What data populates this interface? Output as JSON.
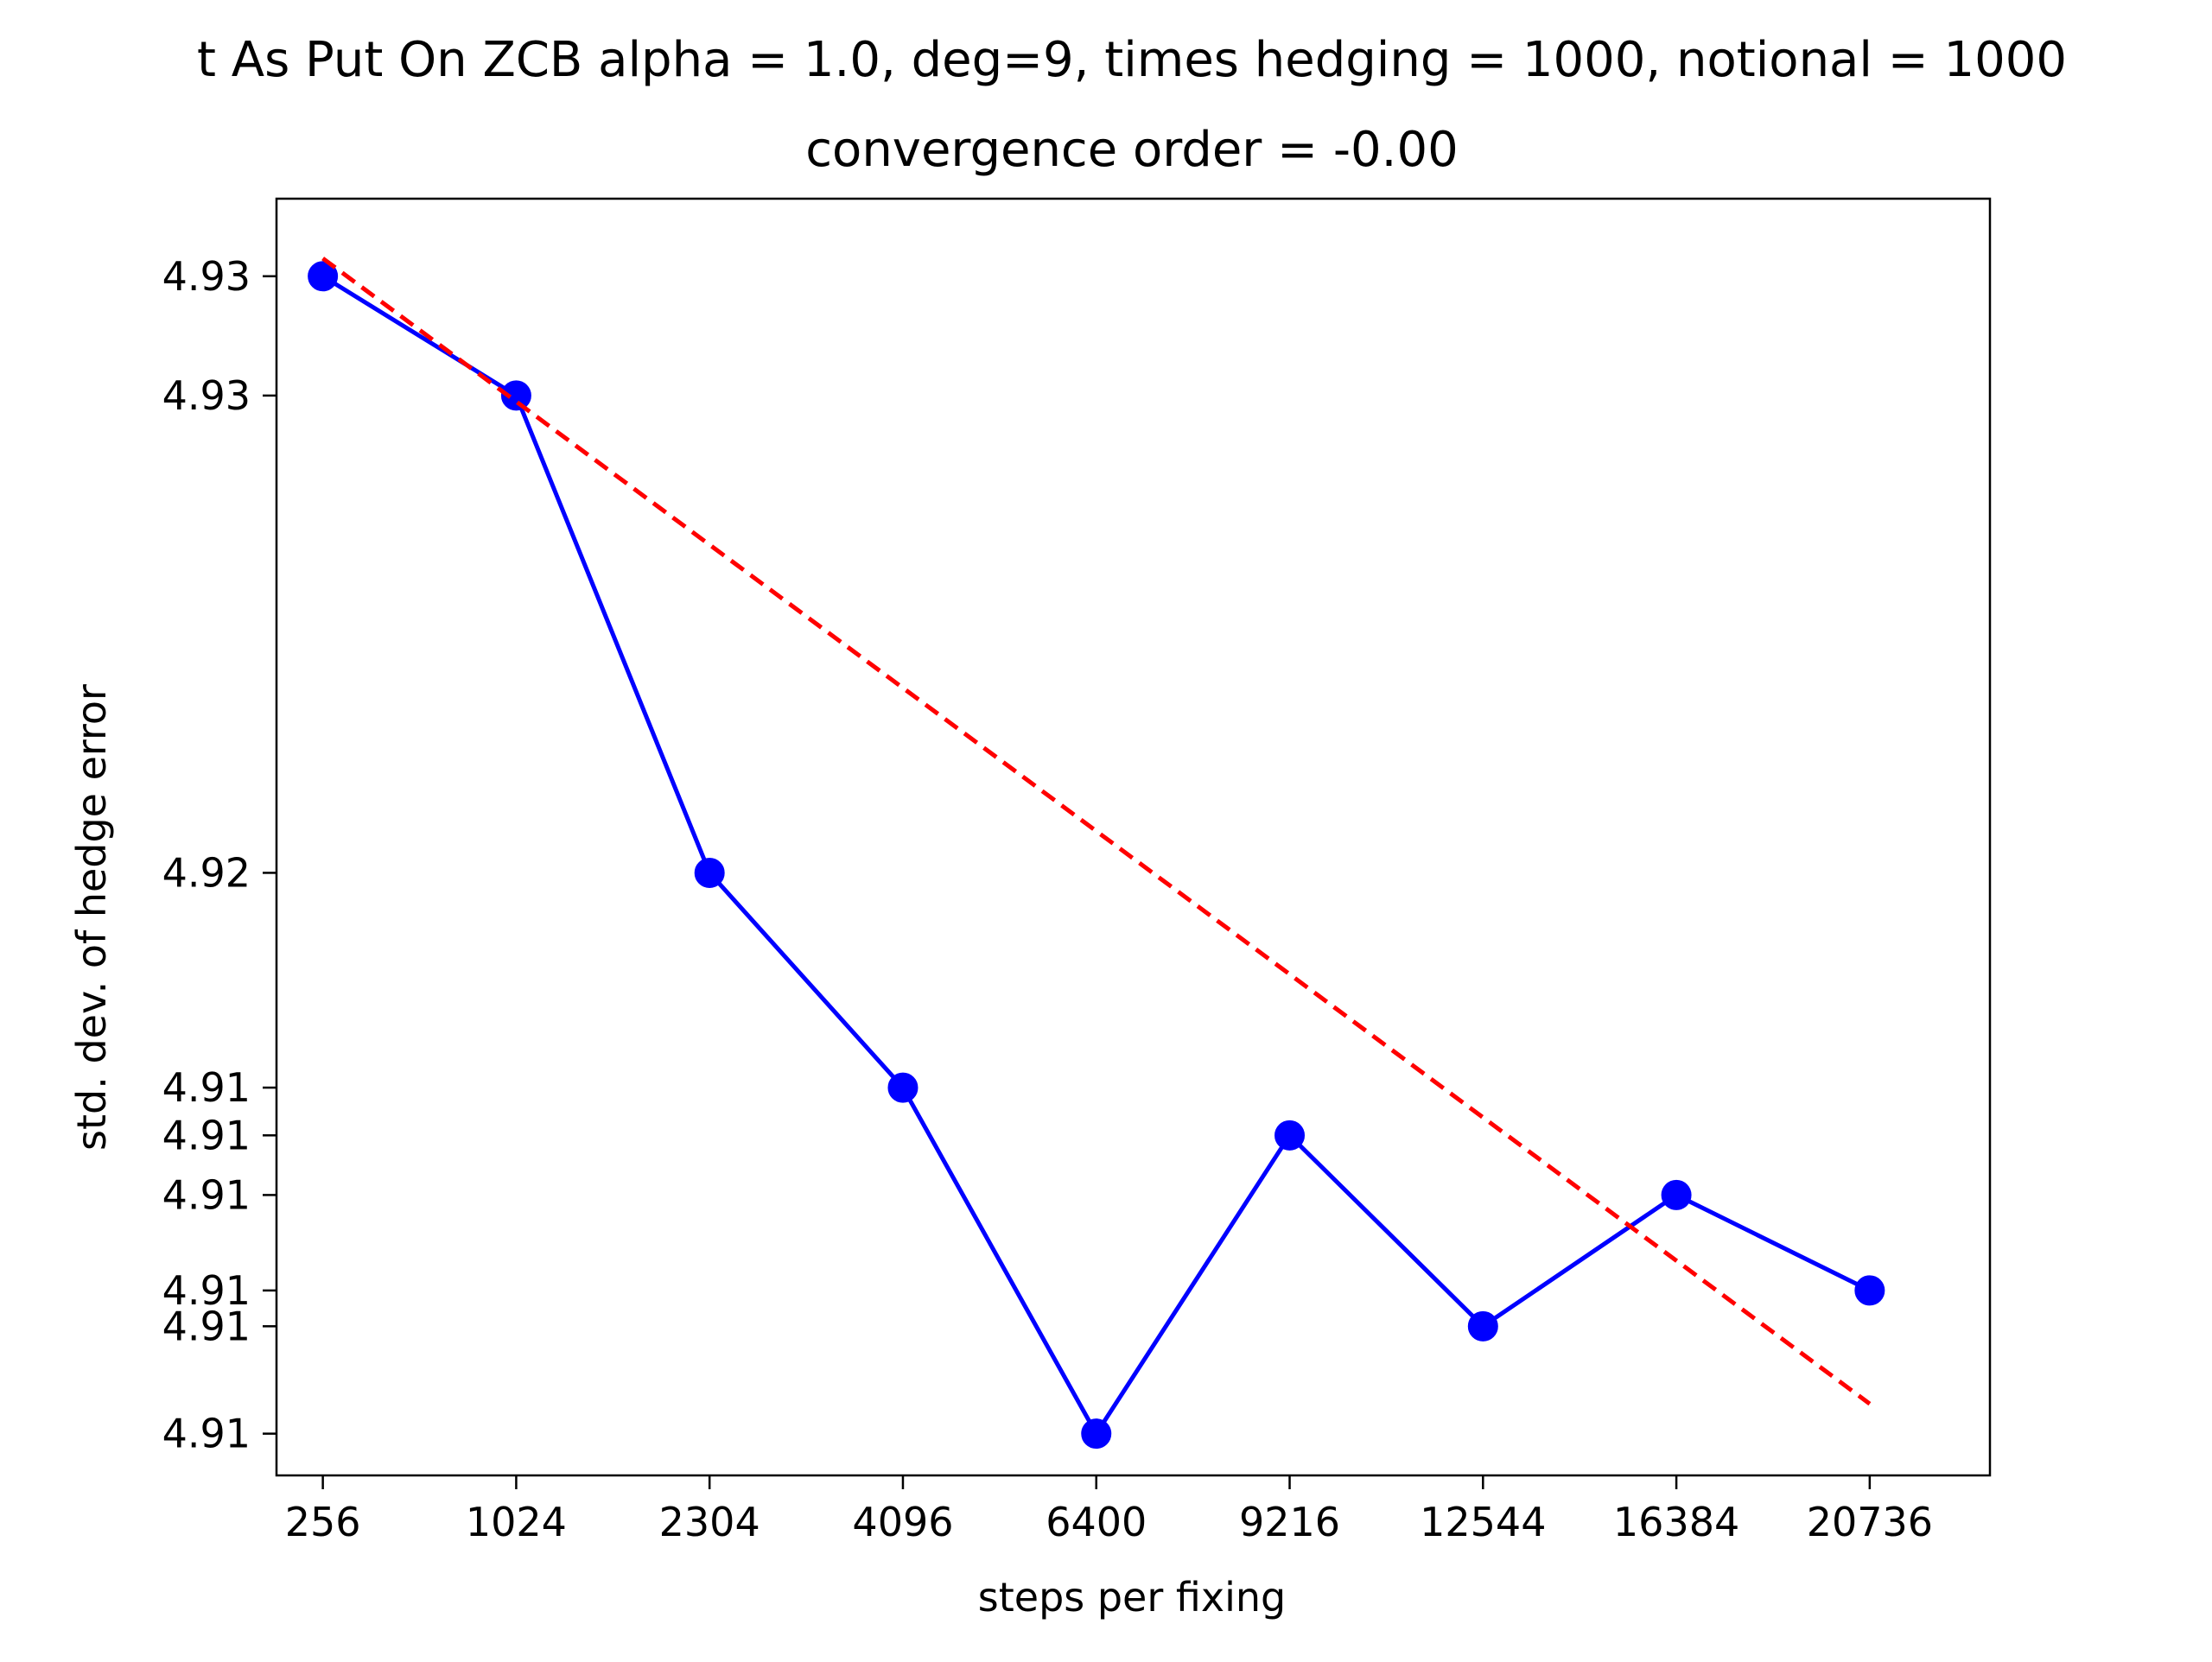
{
  "chart_data": {
    "type": "line",
    "title": "t As Put On ZCB alpha = 1.0, deg=9, times hedging = 1000, notional = 1000",
    "subtitle": "convergence order = -0.00",
    "xlabel": "steps per fixing",
    "ylabel": "std. dev. of hedge error",
    "xscale": "sqrt",
    "x_tick_labels": [
      "256",
      "1024",
      "2304",
      "4096",
      "6400",
      "9216",
      "12544",
      "16384",
      "20736"
    ],
    "y_tick_labels": [
      "4.93",
      "4.93",
      "4.92",
      "4.91",
      "4.91",
      "4.91",
      "4.91",
      "4.91",
      "4.91"
    ],
    "y_tick_values": [
      4.9305,
      4.9295,
      4.9255,
      4.9237,
      4.9233,
      4.9228,
      4.922,
      4.9217,
      4.9208
    ],
    "xlim": [
      148,
      23700
    ],
    "ylim": [
      4.92045,
      4.93115
    ],
    "grid": false,
    "series": [
      {
        "x": [
          256,
          1024,
          2304,
          4096,
          6400,
          9216,
          12544,
          16384,
          20736
        ],
        "y": [
          4.9305,
          4.9295,
          4.9255,
          4.9237,
          4.9208,
          4.9233,
          4.9217,
          4.9228,
          4.922
        ],
        "color": "#0000ff",
        "style": "solid",
        "marker": "circle"
      },
      {
        "x": [
          256,
          20736
        ],
        "y": [
          4.93065,
          4.92105
        ],
        "color": "#ff0000",
        "style": "dashed",
        "marker": "none"
      }
    ]
  }
}
